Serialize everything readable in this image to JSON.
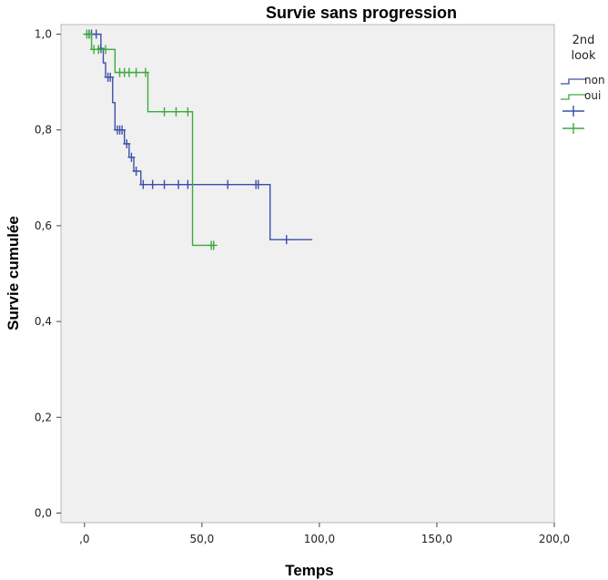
{
  "chart_data": {
    "type": "line",
    "subtype": "kaplan-meier",
    "title": "Survie sans progression",
    "xlabel": "Temps",
    "ylabel": "Survie cumulée",
    "xlim": [
      -10,
      200
    ],
    "ylim": [
      -0.02,
      1.02
    ],
    "xticks": [
      0,
      50,
      100,
      150,
      200
    ],
    "xtick_labels": [
      ",0",
      "50,0",
      "100,0",
      "150,0",
      "200,0"
    ],
    "yticks": [
      0,
      0.2,
      0.4,
      0.6,
      0.8,
      1.0
    ],
    "ytick_labels": [
      "0,0",
      "0,2",
      "0,4",
      "0,6",
      "0,8",
      "1,0"
    ],
    "plot_background": "#f0f0f0",
    "grid": false,
    "legend": {
      "title_lines": [
        "2nd",
        "look"
      ],
      "placement": "right",
      "entries": [
        "non",
        "oui",
        "",
        ""
      ]
    },
    "series": [
      {
        "name": "non",
        "color": "#3c4fa8",
        "steps": [
          [
            0,
            1.0
          ],
          [
            7,
            0.97
          ],
          [
            8,
            0.94
          ],
          [
            9,
            0.91
          ],
          [
            12,
            0.857
          ],
          [
            13,
            0.8
          ],
          [
            17,
            0.771
          ],
          [
            19,
            0.743
          ],
          [
            21,
            0.714
          ],
          [
            24,
            0.686
          ],
          [
            79,
            0.571
          ],
          [
            97,
            0.571
          ]
        ],
        "censored": [
          [
            2,
            1.0
          ],
          [
            3,
            1.0
          ],
          [
            5,
            1.0
          ],
          [
            7,
            0.97
          ],
          [
            10,
            0.91
          ],
          [
            11,
            0.91
          ],
          [
            14,
            0.8
          ],
          [
            15,
            0.8
          ],
          [
            16,
            0.8
          ],
          [
            18,
            0.771
          ],
          [
            20,
            0.743
          ],
          [
            22,
            0.714
          ],
          [
            25,
            0.686
          ],
          [
            29,
            0.686
          ],
          [
            34,
            0.686
          ],
          [
            40,
            0.686
          ],
          [
            44,
            0.686
          ],
          [
            61,
            0.686
          ],
          [
            73,
            0.686
          ],
          [
            74,
            0.686
          ],
          [
            86,
            0.571
          ]
        ]
      },
      {
        "name": "oui",
        "color": "#3daa3d",
        "steps": [
          [
            0,
            1.0
          ],
          [
            3,
            0.968
          ],
          [
            13,
            0.92
          ],
          [
            27,
            0.838
          ],
          [
            46,
            0.559
          ],
          [
            55,
            0.559
          ]
        ],
        "censored": [
          [
            1,
            1.0
          ],
          [
            2,
            1.0
          ],
          [
            4,
            0.968
          ],
          [
            6,
            0.968
          ],
          [
            9,
            0.968
          ],
          [
            15,
            0.92
          ],
          [
            17,
            0.92
          ],
          [
            19,
            0.92
          ],
          [
            22,
            0.92
          ],
          [
            26,
            0.92
          ],
          [
            34,
            0.838
          ],
          [
            39,
            0.838
          ],
          [
            44,
            0.838
          ],
          [
            54,
            0.559
          ],
          [
            55,
            0.559
          ]
        ]
      }
    ]
  }
}
